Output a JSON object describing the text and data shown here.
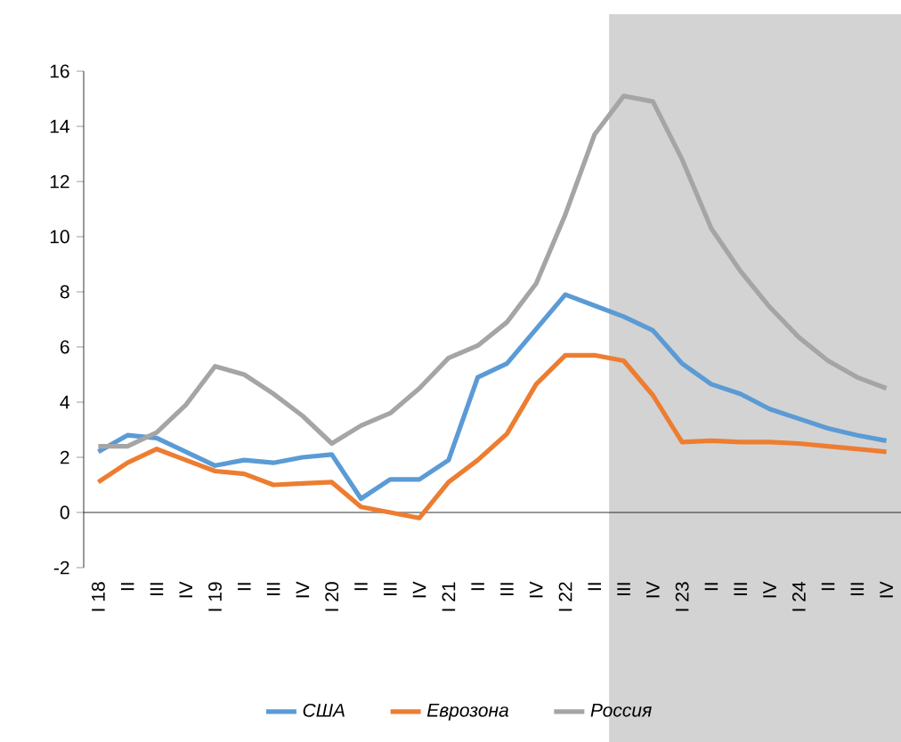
{
  "chart_data": {
    "type": "line",
    "categories": [
      "I 18",
      "II",
      "III",
      "IV",
      "I 19",
      "II",
      "III",
      "IV",
      "I 20",
      "II",
      "III",
      "IV",
      "I 21",
      "II",
      "III",
      "IV",
      "I 22",
      "II",
      "III",
      "IV",
      "I 23",
      "II",
      "III",
      "IV",
      "I 24",
      "II",
      "III",
      "IV"
    ],
    "series": [
      {
        "name": "США",
        "color": "#5b9bd5",
        "values": [
          2.2,
          2.8,
          2.7,
          2.2,
          1.7,
          1.9,
          1.8,
          2.0,
          2.1,
          0.5,
          1.2,
          1.2,
          1.9,
          4.9,
          5.4,
          6.65,
          7.9,
          7.5,
          7.1,
          6.6,
          5.4,
          4.65,
          4.3,
          3.75,
          3.4,
          3.05,
          2.8,
          2.6
        ]
      },
      {
        "name": "Еврозона",
        "color": "#ed7d31",
        "values": [
          1.1,
          1.8,
          2.3,
          1.9,
          1.5,
          1.4,
          1.0,
          1.05,
          1.1,
          0.2,
          0.0,
          -0.2,
          1.1,
          1.9,
          2.85,
          4.65,
          5.7,
          5.7,
          5.5,
          4.25,
          2.55,
          2.6,
          2.55,
          2.55,
          2.5,
          2.4,
          2.3,
          2.2
        ]
      },
      {
        "name": "Россия",
        "color": "#a5a5a5",
        "values": [
          2.4,
          2.4,
          2.9,
          3.9,
          5.3,
          5.0,
          4.3,
          3.5,
          2.5,
          3.15,
          3.6,
          4.5,
          5.6,
          6.05,
          6.9,
          8.3,
          10.8,
          13.7,
          15.1,
          14.9,
          12.8,
          10.3,
          8.75,
          7.45,
          6.35,
          5.5,
          4.9,
          4.5
        ]
      }
    ],
    "ylim": [
      -2,
      16
    ],
    "yticks": [
      -2,
      0,
      2,
      4,
      6,
      8,
      10,
      12,
      14,
      16
    ],
    "legend": "bottom"
  }
}
